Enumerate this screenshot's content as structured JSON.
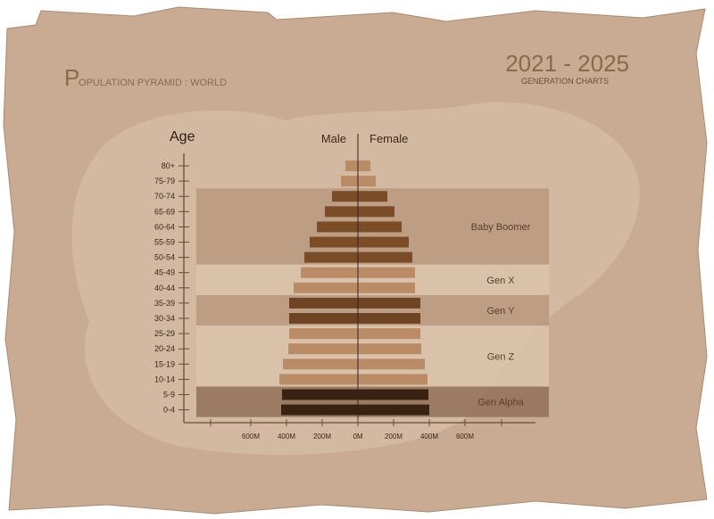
{
  "header": {
    "title_initial": "P",
    "title_rest": "OPULATION PYRAMID : WORLD",
    "year_range": "2021 - 2025",
    "subtitle": "GENERATION CHARTS"
  },
  "colors": {
    "paper": "#c9ab93",
    "paper_light": "#d5bca7",
    "band_dark": "#b8967c",
    "band_light": "#dcc4ad",
    "band_alpha": "#8f6c56",
    "axis": "#6b4a33",
    "text": "#5a3e2c"
  },
  "chart_data": {
    "type": "bar",
    "orientation": "horizontal-pyramid",
    "ylabel": "Age",
    "categories": [
      "80+",
      "75-79",
      "70-74",
      "65-69",
      "60-64",
      "55-59",
      "50-54",
      "45-49",
      "40-44",
      "35-39",
      "30-34",
      "25-29",
      "20-24",
      "15-19",
      "10-14",
      "5-9",
      "0-4"
    ],
    "series": [
      {
        "name": "Male",
        "values": [
          70,
          95,
          145,
          185,
          230,
          270,
          300,
          320,
          360,
          385,
          385,
          385,
          390,
          420,
          440,
          425,
          430
        ],
        "colors": [
          "#b98c67",
          "#b98c67",
          "#7a4c28",
          "#7a4c28",
          "#7a4c28",
          "#7a4c28",
          "#7a4c28",
          "#b98c67",
          "#b98c67",
          "#6f4424",
          "#6f4424",
          "#b98c67",
          "#b98c67",
          "#b98c67",
          "#b98c67",
          "#3a2213",
          "#3a2213"
        ]
      },
      {
        "name": "Female",
        "values": [
          70,
          100,
          165,
          205,
          245,
          285,
          305,
          320,
          320,
          350,
          350,
          350,
          355,
          375,
          390,
          395,
          400
        ],
        "colors": [
          "#b98c67",
          "#b98c67",
          "#7a4c28",
          "#7a4c28",
          "#7a4c28",
          "#7a4c28",
          "#7a4c28",
          "#b98c67",
          "#b98c67",
          "#6f4424",
          "#6f4424",
          "#b98c67",
          "#b98c67",
          "#b98c67",
          "#b98c67",
          "#3a2213",
          "#3a2213"
        ]
      }
    ],
    "x_ticks": [
      "600M",
      "400M",
      "200M",
      "0M",
      "200M",
      "400M",
      "600M"
    ],
    "x_tick_values": [
      -600,
      -400,
      -200,
      0,
      200,
      400,
      600
    ],
    "generations": [
      {
        "label": "Baby Boomer",
        "from": "70-74",
        "to": "50-54",
        "tone": "dark"
      },
      {
        "label": "Gen X",
        "from": "45-49",
        "to": "40-44",
        "tone": "light"
      },
      {
        "label": "Gen Y",
        "from": "35-39",
        "to": "30-34",
        "tone": "dark"
      },
      {
        "label": "Gen Z",
        "from": "25-29",
        "to": "10-14",
        "tone": "light"
      },
      {
        "label": "Gen Alpha",
        "from": "5-9",
        "to": "0-4",
        "tone": "alpha"
      }
    ],
    "grid": false
  }
}
